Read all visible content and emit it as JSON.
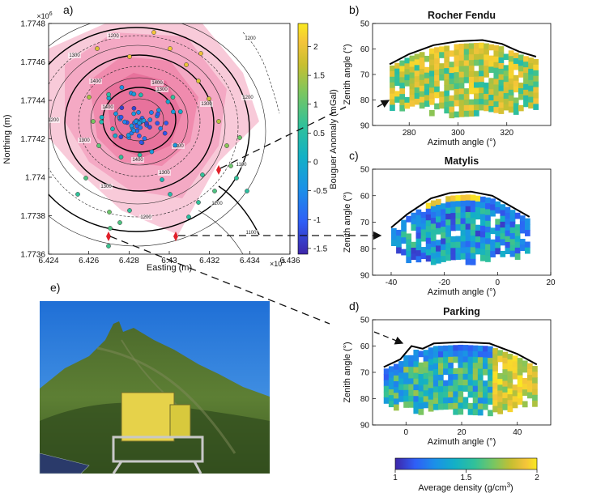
{
  "figure": {
    "panels": {
      "a": "a)",
      "b": "b)",
      "c": "c)",
      "d": "d)",
      "e": "e)"
    },
    "map": {
      "xlabel": "Easting (m)",
      "ylabel": "Northing (m)",
      "x_exponent": "×10",
      "x_exponent_power": "5",
      "y_exponent": "×10",
      "y_exponent_power": "6",
      "x_ticks": [
        "6.424",
        "6.426",
        "6.428",
        "6.43",
        "6.432",
        "6.434",
        "6.436"
      ],
      "y_ticks": [
        "1.7748",
        "1.7746",
        "1.7744",
        "1.7742",
        "1.774",
        "1.7738",
        "1.7736"
      ],
      "contour_labels": [
        "1200",
        "1300",
        "1400",
        "1400",
        "1400",
        "1300",
        "1300",
        "1200",
        "1300",
        "1400",
        "1300",
        "1200",
        "1200",
        "1300",
        "1200",
        "1100",
        "1200",
        "1300",
        "1100"
      ],
      "colorbar_label": "Bouguer Anomaly (mGal)",
      "colorbar_ticks": [
        "2",
        "1.5",
        "1",
        "0.5",
        "0",
        "-0.5",
        "-1",
        "-1.5"
      ],
      "colorbar_range": [
        -1.6,
        2.4
      ],
      "colors": {
        "pink": "#f27aa6",
        "contour_bold": "#000000",
        "contour_thin": "#222222"
      }
    },
    "density_colorbar": {
      "label": "Average density (g/cm",
      "label_sup": "3",
      "label_end": ")",
      "ticks": [
        "1",
        "1.5",
        "2"
      ],
      "range": [
        1,
        2
      ]
    },
    "colormap": [
      "#3e26a8",
      "#2f5ef6",
      "#1b90e8",
      "#13b0c6",
      "#31c199",
      "#7bc660",
      "#c7bf31",
      "#f4c43a",
      "#f9e920"
    ]
  },
  "chart_data": [
    {
      "type": "heatmap",
      "panel": "b)",
      "title": "Rocher Fendu",
      "xlabel": "Azimuth angle (°)",
      "ylabel": "Zenith angle (°)",
      "xlim": [
        265,
        338
      ],
      "ylim": [
        90,
        50
      ],
      "x_ticks": [
        "280",
        "300",
        "320"
      ],
      "y_ticks": [
        "50",
        "60",
        "70",
        "80",
        "90"
      ],
      "value_range": [
        1,
        2
      ],
      "dominant_density": 1.7,
      "topography_zenith": [
        [
          272,
          66
        ],
        [
          280,
          62
        ],
        [
          290,
          58.5
        ],
        [
          300,
          57
        ],
        [
          310,
          56.5
        ],
        [
          318,
          58
        ],
        [
          325,
          61
        ],
        [
          332,
          63
        ]
      ]
    },
    {
      "type": "heatmap",
      "panel": "c)",
      "title": "Matylis",
      "xlabel": "Azimuth angle (°)",
      "ylabel": "Zenith angle (°)",
      "xlim": [
        -47,
        20
      ],
      "ylim": [
        90,
        50
      ],
      "x_ticks": [
        "-40",
        "-20",
        "0",
        "20"
      ],
      "y_ticks": [
        "50",
        "60",
        "70",
        "80",
        "90"
      ],
      "value_range": [
        1,
        2
      ],
      "dominant_density": 1.3,
      "topography_zenith": [
        [
          -40,
          72
        ],
        [
          -34,
          67
        ],
        [
          -25,
          61
        ],
        [
          -18,
          59
        ],
        [
          -10,
          58.5
        ],
        [
          -2,
          60
        ],
        [
          5,
          64
        ],
        [
          12,
          68
        ]
      ]
    },
    {
      "type": "heatmap",
      "panel": "d)",
      "title": "Parking",
      "xlabel": "Azimuth angle (°)",
      "ylabel": "Zenith angle (°)",
      "xlim": [
        -12,
        52
      ],
      "ylim": [
        90,
        50
      ],
      "x_ticks": [
        "0",
        "20",
        "40"
      ],
      "y_ticks": [
        "50",
        "60",
        "70",
        "80",
        "90"
      ],
      "value_range": [
        1,
        2
      ],
      "dominant_density": 1.45,
      "topography_zenith": [
        [
          -8,
          68
        ],
        [
          -2,
          65
        ],
        [
          2,
          60
        ],
        [
          6,
          61
        ],
        [
          10,
          59
        ],
        [
          20,
          58.5
        ],
        [
          30,
          59
        ],
        [
          40,
          63
        ],
        [
          47,
          67
        ]
      ]
    }
  ]
}
